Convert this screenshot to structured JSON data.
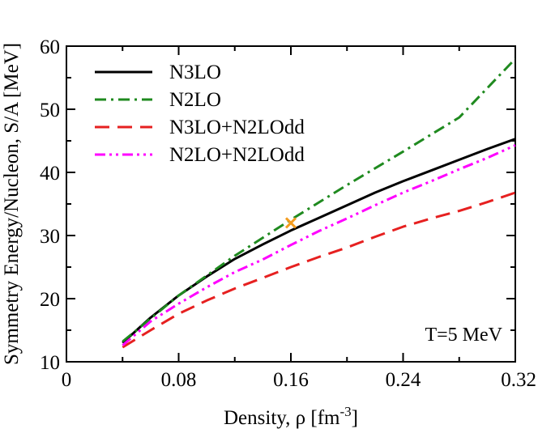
{
  "chart_data": {
    "type": "line",
    "title": "",
    "xlabel": "Density, ρ [fm",
    "xlabel_sup": "-3",
    "xlabel_end": "]",
    "ylabel": "Symmetry Energy/Nucleon, S/A [MeV]",
    "xlim": [
      0,
      0.32
    ],
    "ylim": [
      10,
      60
    ],
    "xticks": [
      0,
      0.08,
      0.16,
      0.24,
      0.32
    ],
    "xtick_labels": [
      "0",
      "0.08",
      "0.16",
      "0.24",
      "0.32"
    ],
    "yticks": [
      10,
      20,
      30,
      40,
      50,
      60
    ],
    "ytick_labels": [
      "10",
      "20",
      "30",
      "40",
      "50",
      "60"
    ],
    "grid": false,
    "legend_position": "top-left",
    "annotation": "T=5 MeV",
    "series": [
      {
        "name": "N3LO",
        "color": "#000000",
        "dash": "solid",
        "x": [
          0.04,
          0.06,
          0.08,
          0.1,
          0.12,
          0.14,
          0.16,
          0.18,
          0.2,
          0.22,
          0.24,
          0.26,
          0.28,
          0.3,
          0.32
        ],
        "y": [
          13.0,
          17.0,
          20.5,
          23.5,
          26.3,
          28.6,
          30.8,
          32.8,
          34.8,
          36.8,
          38.6,
          40.3,
          42.0,
          43.7,
          45.3
        ]
      },
      {
        "name": "N2LO",
        "color": "#1f8a1f",
        "dash": "dashdot",
        "x": [
          0.04,
          0.08,
          0.12,
          0.16,
          0.2,
          0.24,
          0.28,
          0.32
        ],
        "y": [
          13.2,
          20.5,
          26.8,
          32.5,
          38.0,
          43.3,
          48.7,
          58.0
        ]
      },
      {
        "name": "N3LO+N2LOdd",
        "color": "#e62020",
        "dash": "dashed",
        "x": [
          0.04,
          0.06,
          0.08,
          0.1,
          0.12,
          0.14,
          0.16,
          0.18,
          0.2,
          0.22,
          0.24,
          0.26,
          0.28,
          0.3,
          0.32
        ],
        "y": [
          12.3,
          15.0,
          17.6,
          19.7,
          21.6,
          23.3,
          25.0,
          26.6,
          28.1,
          29.8,
          31.4,
          32.7,
          33.9,
          35.3,
          36.8
        ]
      },
      {
        "name": "N2LO+N2LOdd",
        "color": "#ff00ff",
        "dash": "dashdotdot",
        "x": [
          0.04,
          0.06,
          0.08,
          0.1,
          0.12,
          0.14,
          0.16,
          0.18,
          0.2,
          0.22,
          0.24,
          0.26,
          0.28,
          0.3,
          0.32
        ],
        "y": [
          12.6,
          16.4,
          19.2,
          21.8,
          24.2,
          26.2,
          28.5,
          30.7,
          32.7,
          34.8,
          36.8,
          38.6,
          40.5,
          42.3,
          44.3
        ]
      }
    ],
    "marker": {
      "x": 0.16,
      "y": 32.0,
      "symbol": "x",
      "color": "#f39c1f"
    }
  }
}
